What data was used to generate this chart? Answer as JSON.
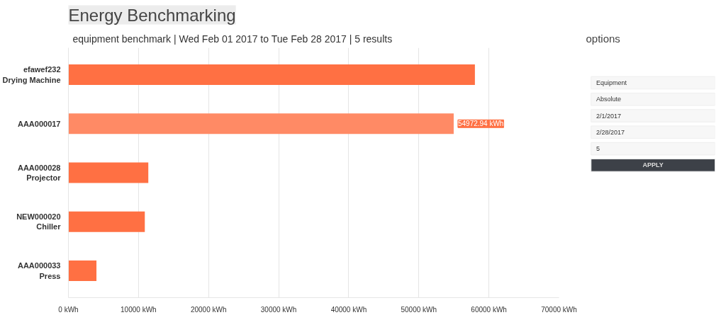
{
  "chart_data": [
    {
      "type": "bar",
      "orientation": "horizontal",
      "title": "Energy Benchmarking",
      "subtitle": "equipment benchmark | Wed Feb 01 2017 to Tue Feb 28 2017 | 5 results",
      "categories": [
        "efawef232\nDrying Machine",
        "AAA000017",
        "AAA000028\nProjector",
        "NEW000020\nChiller",
        "AAA000033\nPress"
      ],
      "values": [
        58000,
        54972.94,
        11400,
        10900,
        4000
      ],
      "colors": [
        "#ff7043",
        "#ff8a65",
        "#ff7043",
        "#ff7043",
        "#ff7043"
      ],
      "value_labels": [
        null,
        "54972.94 kWh",
        null,
        null,
        null
      ],
      "xlim": [
        0,
        70000
      ],
      "xticks": [
        {
          "value": 0,
          "label": "0 kWh"
        },
        {
          "value": 10000,
          "label": "10000 kWh"
        },
        {
          "value": 20000,
          "label": "20000 kWh"
        },
        {
          "value": 30000,
          "label": "30000 kWh"
        },
        {
          "value": 40000,
          "label": "40000 kWh"
        },
        {
          "value": 50000,
          "label": "50000 kWh"
        },
        {
          "value": 60000,
          "label": "60000 kWh"
        },
        {
          "value": 70000,
          "label": "70000 kWh"
        }
      ],
      "grid": "x"
    },
    {
      "type": "other",
      "title": "options",
      "annotations": [
        "Equipment",
        "Absolute",
        "2/1/2017",
        "2/28/2017",
        "5",
        "APPLY"
      ]
    }
  ]
}
